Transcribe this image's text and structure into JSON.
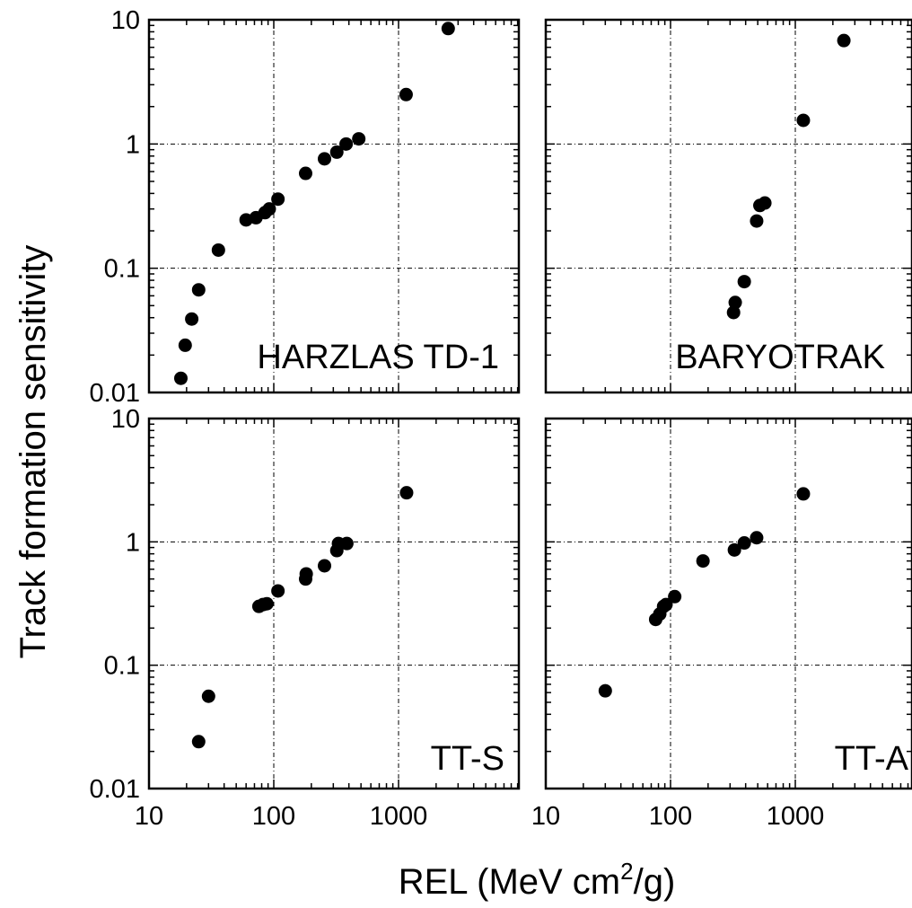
{
  "figure": {
    "ylabel": "Track formation sensitivity",
    "xlabel_main": "REL (MeV cm",
    "xlabel_sup": "2",
    "xlabel_tail": "/g)"
  },
  "chart_data": [
    {
      "type": "scatter",
      "title": "HARZLAS TD-1",
      "xscale": "log",
      "yscale": "log",
      "xlim": [
        10,
        7000
      ],
      "ylim": [
        0.01,
        10
      ],
      "grid": true,
      "xticks": [
        "10",
        "100",
        "1000"
      ],
      "yticks": [
        "0.01",
        "0.1",
        "1",
        "10"
      ],
      "series": [
        {
          "points": [
            [
              18,
              0.013
            ],
            [
              19.5,
              0.024
            ],
            [
              22,
              0.039
            ],
            [
              25,
              0.067
            ],
            [
              36,
              0.14
            ],
            [
              60,
              0.245
            ],
            [
              72,
              0.255
            ],
            [
              85,
              0.28
            ],
            [
              92,
              0.3
            ],
            [
              108,
              0.36
            ],
            [
              180,
              0.58
            ],
            [
              255,
              0.76
            ],
            [
              320,
              0.86
            ],
            [
              380,
              1.0
            ],
            [
              480,
              1.1
            ],
            [
              1150,
              2.5
            ],
            [
              2500,
              8.5
            ]
          ]
        }
      ]
    },
    {
      "type": "scatter",
      "title": "BARYOTRAK",
      "xscale": "log",
      "yscale": "log",
      "xlim": [
        10,
        7000
      ],
      "ylim": [
        0.01,
        10
      ],
      "grid": true,
      "xticks": [
        "10",
        "100",
        "1000"
      ],
      "yticks": [
        "0.01",
        "0.1",
        "1",
        "10"
      ],
      "series": [
        {
          "points": [
            [
              320,
              0.044
            ],
            [
              330,
              0.053
            ],
            [
              390,
              0.078
            ],
            [
              490,
              0.24
            ],
            [
              520,
              0.32
            ],
            [
              570,
              0.335
            ],
            [
              1160,
              1.55
            ],
            [
              2450,
              6.8
            ]
          ]
        }
      ]
    },
    {
      "type": "scatter",
      "title": "TT-S",
      "xscale": "log",
      "yscale": "log",
      "xlim": [
        10,
        7000
      ],
      "ylim": [
        0.01,
        10
      ],
      "grid": true,
      "xticks": [
        "10",
        "100",
        "1000"
      ],
      "yticks": [
        "0.01",
        "0.1",
        "1",
        "10"
      ],
      "series": [
        {
          "points": [
            [
              25,
              0.024
            ],
            [
              30,
              0.056
            ],
            [
              76,
              0.3
            ],
            [
              82,
              0.31
            ],
            [
              88,
              0.315
            ],
            [
              108,
              0.4
            ],
            [
              180,
              0.5
            ],
            [
              182,
              0.55
            ],
            [
              255,
              0.64
            ],
            [
              320,
              0.85
            ],
            [
              330,
              0.97
            ],
            [
              385,
              0.97
            ],
            [
              1160,
              2.5
            ]
          ]
        }
      ]
    },
    {
      "type": "scatter",
      "title": "TT-A",
      "xscale": "log",
      "yscale": "log",
      "xlim": [
        10,
        7000
      ],
      "ylim": [
        0.01,
        10
      ],
      "grid": true,
      "xticks": [
        "10",
        "100",
        "1000"
      ],
      "yticks": [
        "0.01",
        "0.1",
        "1",
        "10"
      ],
      "series": [
        {
          "points": [
            [
              30,
              0.062
            ],
            [
              76,
              0.235
            ],
            [
              82,
              0.26
            ],
            [
              88,
              0.3
            ],
            [
              92,
              0.31
            ],
            [
              108,
              0.36
            ],
            [
              182,
              0.7
            ],
            [
              325,
              0.86
            ],
            [
              390,
              0.98
            ],
            [
              490,
              1.08
            ],
            [
              1160,
              2.45
            ]
          ]
        }
      ]
    }
  ]
}
